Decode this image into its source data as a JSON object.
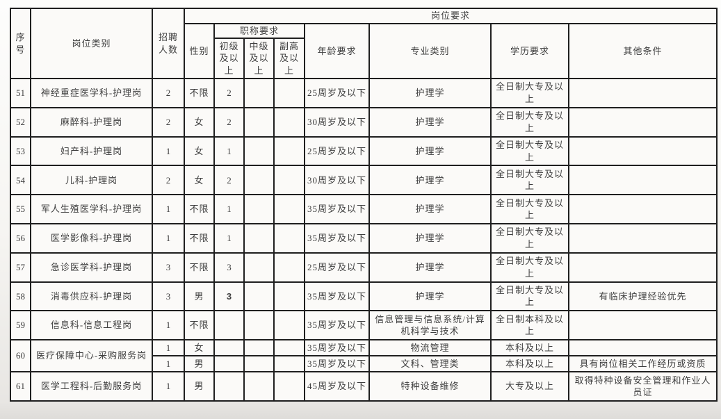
{
  "colors": {
    "border": "#1f1f1f",
    "text": "#3e3e3e",
    "cell_bg": "#fbfaf8",
    "page_bg_bottom": "#dedcd9"
  },
  "table": {
    "header": {
      "col_no": "序号",
      "col_category": "岗位类别",
      "col_count": "招聘人数",
      "group_requirements": "岗位要求",
      "col_gender": "性别",
      "group_title_req": "职称要求",
      "col_junior": "初级及以上",
      "col_intermediate": "中级及以上",
      "col_senior": "副高及以上",
      "col_age": "年龄要求",
      "col_major": "专业类别",
      "col_education": "学历要求",
      "col_other": "其他条件"
    },
    "rows": [
      {
        "no": "51",
        "category": "神经重症医学科-护理岗",
        "count": "2",
        "gender": "不限",
        "junior": "2",
        "intermediate": "",
        "senior": "",
        "age": "25周岁及以下",
        "major": "护理学",
        "education": "全日制大专及以上",
        "other": ""
      },
      {
        "no": "52",
        "category": "麻醉科-护理岗",
        "count": "2",
        "gender": "女",
        "junior": "2",
        "intermediate": "",
        "senior": "",
        "age": "30周岁及以下",
        "major": "护理学",
        "education": "全日制大专及以上",
        "other": ""
      },
      {
        "no": "53",
        "category": "妇产科-护理岗",
        "count": "1",
        "gender": "女",
        "junior": "1",
        "intermediate": "",
        "senior": "",
        "age": "25周岁及以下",
        "major": "护理学",
        "education": "全日制大专及以上",
        "other": ""
      },
      {
        "no": "54",
        "category": "儿科-护理岗",
        "count": "2",
        "gender": "女",
        "junior": "2",
        "intermediate": "",
        "senior": "",
        "age": "30周岁及以下",
        "major": "护理学",
        "education": "全日制大专及以上",
        "other": ""
      },
      {
        "no": "55",
        "category": "军人生殖医学科-护理岗",
        "count": "1",
        "gender": "不限",
        "junior": "1",
        "intermediate": "",
        "senior": "",
        "age": "35周岁及以下",
        "major": "护理学",
        "education": "全日制大专及以上",
        "other": ""
      },
      {
        "no": "56",
        "category": "医学影像科-护理岗",
        "count": "1",
        "gender": "不限",
        "junior": "1",
        "intermediate": "",
        "senior": "",
        "age": "35周岁及以下",
        "major": "护理学",
        "education": "全日制大专及以上",
        "other": ""
      },
      {
        "no": "57",
        "category": "急诊医学科-护理岗",
        "count": "3",
        "gender": "不限",
        "junior": "3",
        "intermediate": "",
        "senior": "",
        "age": "25周岁及以下",
        "major": "护理学",
        "education": "全日制大专及以上",
        "other": ""
      },
      {
        "no": "58",
        "category": "消毒供应科-护理岗",
        "count": "3",
        "gender": "男",
        "junior": "3",
        "junior_bold": true,
        "intermediate": "",
        "senior": "",
        "age": "35周岁及以下",
        "major": "护理学",
        "education": "全日制大专及以上",
        "other": "有临床护理经验优先"
      },
      {
        "no": "59",
        "category": "信息科-信息工程岗",
        "count": "1",
        "gender": "不限",
        "junior": "",
        "intermediate": "",
        "senior": "",
        "age": "35周岁及以下",
        "major": "信息管理与信息系统/计算机科学与技术",
        "education": "全日制本科及以上",
        "other": ""
      },
      {
        "no": "60",
        "category": "医疗保障中心-采购服务岗",
        "rowspan": 2,
        "count": "1",
        "gender": "女",
        "junior": "",
        "intermediate": "",
        "senior": "",
        "age": "35周岁及以下",
        "major": "物流管理",
        "education": "本科及以上",
        "other": ""
      },
      {
        "merged": true,
        "count": "1",
        "gender": "男",
        "junior": "",
        "intermediate": "",
        "senior": "",
        "age": "35周岁及以下",
        "major": "文科、管理类",
        "education": "本科及以上",
        "other": "具有岗位相关工作经历或资质"
      },
      {
        "no": "61",
        "category": "医学工程科-后勤服务岗",
        "count": "1",
        "gender": "男",
        "junior": "",
        "intermediate": "",
        "senior": "",
        "age": "45周岁及以下",
        "major": "特种设备维修",
        "education": "大专及以上",
        "other": "取得特种设备安全管理和作业人员证"
      }
    ]
  }
}
